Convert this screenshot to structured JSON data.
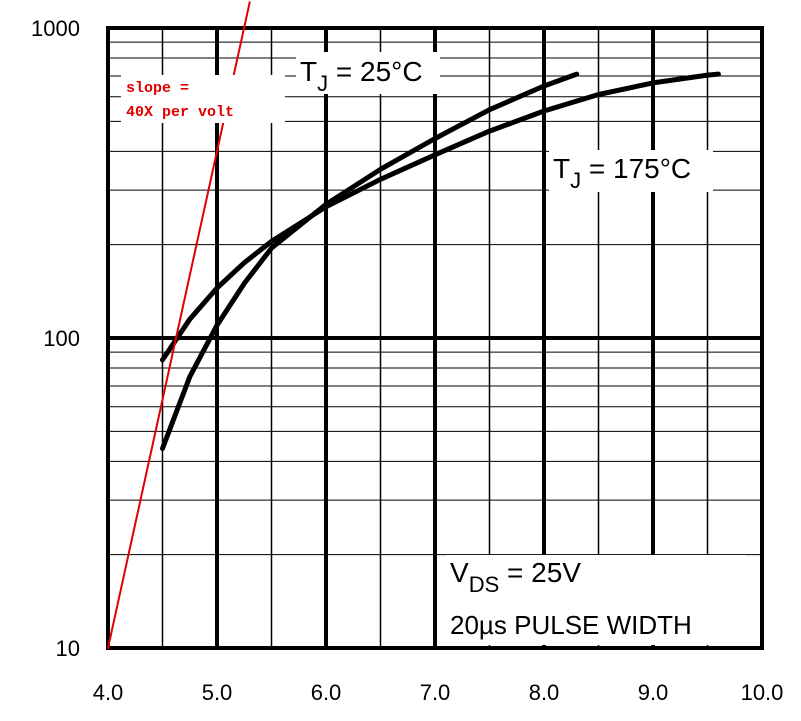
{
  "chart_data": {
    "type": "line",
    "x_scale": "linear",
    "y_scale": "log",
    "xlim": [
      4.0,
      10.0
    ],
    "ylim": [
      10,
      1000
    ],
    "grid": true,
    "xlabel": "",
    "ylabel": "",
    "x_ticks": [
      "4.0",
      "5.0",
      "6.0",
      "7.0",
      "8.0",
      "9.0",
      "10.0"
    ],
    "y_ticks": [
      "10",
      "100",
      "1000"
    ],
    "series": [
      {
        "name": "T_J = 25°C",
        "color": "#000000",
        "x": [
          4.5,
          4.75,
          5.0,
          5.25,
          5.5,
          6.0,
          6.5,
          7.0,
          7.5,
          8.0,
          8.3
        ],
        "y": [
          44,
          75,
          110,
          150,
          195,
          270,
          350,
          440,
          545,
          650,
          710
        ]
      },
      {
        "name": "T_J = 175°C",
        "color": "#000000",
        "x": [
          4.5,
          4.75,
          5.0,
          5.25,
          5.5,
          6.0,
          6.5,
          7.0,
          7.5,
          8.0,
          8.5,
          9.0,
          9.5,
          9.6
        ],
        "y": [
          85,
          115,
          145,
          175,
          205,
          265,
          325,
          390,
          465,
          540,
          610,
          665,
          705,
          710
        ]
      },
      {
        "name": "slope = 40X per volt",
        "color": "#e00000",
        "x": [
          4.0,
          5.3
        ],
        "y": [
          10,
          1210
        ]
      }
    ],
    "annotations": {
      "tj25": {
        "main": "T",
        "sub": "J",
        "rest": " = 25°C"
      },
      "tj175": {
        "main": "T",
        "sub": "J",
        "rest": " = 175°C"
      },
      "vds": {
        "main": "V",
        "sub": "DS",
        "rest": " = 25V"
      },
      "pulse": "20µs PULSE WIDTH",
      "slope_line1": "slope =",
      "slope_line2": "40X per volt"
    }
  }
}
